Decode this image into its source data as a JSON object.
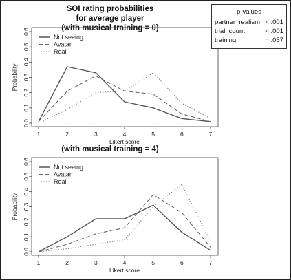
{
  "title_lines": [
    "SOI rating probabilities",
    "for average player",
    "(with musical training = 0)"
  ],
  "pvalues": {
    "title": "p-values",
    "rows": [
      {
        "name": "partner_realism",
        "value": "< .001"
      },
      {
        "name": "trial_count",
        "value": "< .001"
      },
      {
        "name": "training",
        "value": "= .057"
      }
    ]
  },
  "series_styles": {
    "Not seeing": "solid",
    "Avatar": "dashed",
    "Real": "dotted"
  },
  "colors": {
    "Not seeing": "#555555",
    "Avatar": "#666666",
    "Real": "#777777"
  },
  "chart_data": [
    {
      "type": "line",
      "title": "(with musical training = 0)",
      "xlabel": "Likert score",
      "ylabel": "Probability",
      "x": [
        1,
        2,
        3,
        4,
        5,
        6,
        7
      ],
      "xticks": [
        "1",
        "2",
        "3",
        "4",
        "5",
        "6",
        "7"
      ],
      "yticks": [
        "0.0",
        "0.1",
        "0.2",
        "0.3",
        "0.4",
        "0.5",
        "0.6"
      ],
      "xlim": [
        1,
        7
      ],
      "ylim": [
        0,
        0.6
      ],
      "legend_position": "top-left",
      "grid": false,
      "series": [
        {
          "name": "Not seeing",
          "values": [
            0.01,
            0.37,
            0.33,
            0.14,
            0.1,
            0.03,
            0.01
          ]
        },
        {
          "name": "Avatar",
          "values": [
            0.01,
            0.21,
            0.31,
            0.21,
            0.19,
            0.06,
            0.01
          ]
        },
        {
          "name": "Real",
          "values": [
            0.0,
            0.09,
            0.2,
            0.21,
            0.33,
            0.13,
            0.03
          ]
        }
      ]
    },
    {
      "type": "line",
      "title": "(with musical training = 4)",
      "xlabel": "Likert score",
      "ylabel": "Probability",
      "x": [
        1,
        2,
        3,
        4,
        5,
        6,
        7
      ],
      "xticks": [
        "1",
        "2",
        "3",
        "4",
        "5",
        "6",
        "7"
      ],
      "yticks": [
        "0.0",
        "0.1",
        "0.2",
        "0.3",
        "0.4",
        "0.5",
        "0.6"
      ],
      "xlim": [
        1,
        7
      ],
      "ylim": [
        0,
        0.6
      ],
      "legend_position": "top-left",
      "grid": false,
      "series": [
        {
          "name": "Not seeing",
          "values": [
            0.0,
            0.1,
            0.22,
            0.22,
            0.31,
            0.13,
            0.01
          ]
        },
        {
          "name": "Avatar",
          "values": [
            0.0,
            0.05,
            0.12,
            0.16,
            0.38,
            0.26,
            0.03
          ]
        },
        {
          "name": "Real",
          "values": [
            0.0,
            0.02,
            0.05,
            0.08,
            0.3,
            0.45,
            0.07
          ]
        }
      ]
    }
  ]
}
